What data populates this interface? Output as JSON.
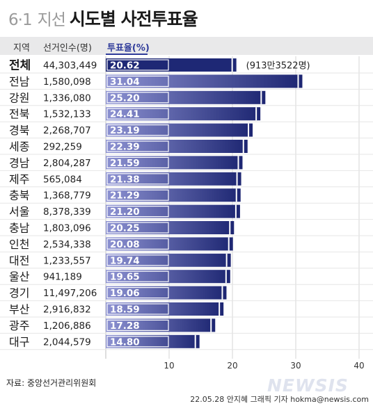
{
  "title": {
    "date": "6·1",
    "election": "지선",
    "main": "시도별 사전투표율"
  },
  "headers": {
    "region": "지역",
    "voters": "선거인수(명)",
    "rate": "투표율(%)"
  },
  "total_note": "(913만3522명)",
  "source": "자료: 중앙선거관리위원회",
  "credit": "22.05.28 안지혜 그래픽 기자 hokma@newsis.com",
  "logo": "NEWSIS",
  "colors": {
    "bar_dark": "#1f2a78",
    "bar_light": "#8b8fcf",
    "total_bar": "#1e2875",
    "accent": "#2f3b9a"
  },
  "chart_data": {
    "type": "bar",
    "orientation": "horizontal",
    "categories": [
      "전체",
      "전남",
      "강원",
      "전북",
      "경북",
      "세종",
      "경남",
      "제주",
      "충북",
      "서울",
      "충남",
      "인천",
      "대전",
      "울산",
      "경기",
      "부산",
      "광주",
      "대구"
    ],
    "voters": [
      "44,303,449",
      "1,580,098",
      "1,336,080",
      "1,532,133",
      "2,268,707",
      "292,259",
      "2,804,287",
      "565,084",
      "1,368,779",
      "8,378,339",
      "1,803,096",
      "2,534,338",
      "1,233,557",
      "941,189",
      "11,497,206",
      "2,916,832",
      "1,206,886",
      "2,044,579"
    ],
    "values": [
      20.62,
      31.04,
      25.2,
      24.41,
      23.19,
      22.39,
      21.59,
      21.38,
      21.29,
      21.2,
      20.25,
      20.08,
      19.74,
      19.65,
      19.06,
      18.59,
      17.28,
      14.8
    ],
    "labels": [
      "20.62",
      "31.04",
      "25.20",
      "24.41",
      "23.19",
      "22.39",
      "21.59",
      "21.38",
      "21.29",
      "21.20",
      "20.25",
      "20.08",
      "19.74",
      "19.65",
      "19.06",
      "18.59",
      "17.28",
      "14.80"
    ],
    "xlim": [
      0,
      40
    ],
    "xticks": [
      10,
      20,
      30,
      40
    ],
    "xtick_labels": [
      "10",
      "20",
      "30",
      "40"
    ]
  }
}
